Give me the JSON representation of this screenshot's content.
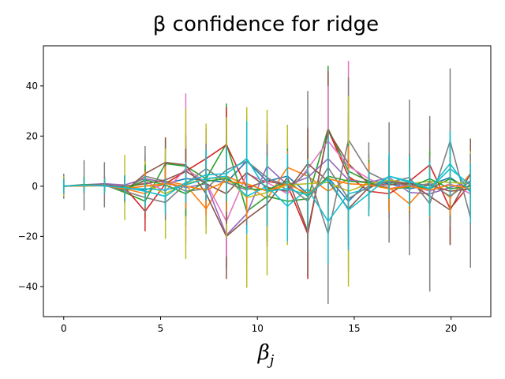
{
  "chart_data": {
    "type": "line",
    "title": "β confidence for ridge",
    "xlabel": "β",
    "xlabel_subscript": "j",
    "ylabel": "",
    "xlim": [
      -1.05,
      22.05
    ],
    "ylim": [
      -52,
      56
    ],
    "xticks": [
      0,
      5,
      10,
      15,
      20
    ],
    "yticks": [
      -40,
      -20,
      0,
      20,
      40
    ],
    "grid": false,
    "legend": "none",
    "x": [
      0,
      1.05,
      2.1,
      3.15,
      4.2,
      5.25,
      6.3,
      7.35,
      8.4,
      9.45,
      10.5,
      11.55,
      12.6,
      13.65,
      14.7,
      15.75,
      16.8,
      17.85,
      18.9,
      19.95,
      21.0
    ],
    "series": [
      {
        "color": "#1f77b4",
        "values": [
          0,
          0.4,
          0.8,
          -0.5,
          -1.5,
          1.0,
          3.0,
          2.5,
          1.5,
          10.0,
          2.0,
          4.0,
          -3.0,
          3.5,
          -6.0,
          2.0,
          1.0,
          -1.0,
          0.5,
          3.5,
          -2.0
        ],
        "error": [
          4,
          3,
          3,
          3,
          4,
          5,
          6,
          6,
          7,
          8,
          9,
          9,
          10,
          11,
          12,
          9,
          9,
          9,
          10,
          11,
          10
        ]
      },
      {
        "color": "#ff7f0e",
        "values": [
          0,
          0.2,
          0.3,
          -1.0,
          -3.0,
          2.0,
          0.5,
          -9.0,
          4.0,
          0.5,
          -5.0,
          7.5,
          4.0,
          -2.0,
          3.0,
          1.0,
          -0.5,
          -7.0,
          2.0,
          -4.5,
          5.0
        ],
        "error": [
          3,
          2,
          2,
          3,
          4,
          4,
          6,
          7,
          7,
          8,
          9,
          9,
          10,
          12,
          11,
          9,
          8,
          8,
          9,
          10,
          10
        ]
      },
      {
        "color": "#2ca02c",
        "values": [
          0,
          0.5,
          0.6,
          -2.5,
          -6.0,
          9.0,
          8.0,
          3.0,
          17.0,
          -10.0,
          -4.0,
          -6.0,
          -5.0,
          23.0,
          6.0,
          2.0,
          1.5,
          0.5,
          -1.0,
          3.0,
          -1.5
        ],
        "error": [
          4,
          3,
          3,
          4,
          7,
          10,
          12,
          11,
          16,
          20,
          18,
          16,
          20,
          25,
          22,
          11,
          10,
          10,
          12,
          13,
          12
        ]
      },
      {
        "color": "#d62728",
        "values": [
          0,
          0.3,
          0.4,
          -0.5,
          -10.0,
          1.0,
          6.0,
          11.0,
          16.5,
          -0.5,
          2.0,
          0.5,
          -19.0,
          22.5,
          4.0,
          -2.0,
          -3.0,
          2.0,
          8.5,
          -9.0,
          1.0
        ],
        "error": [
          4,
          3,
          3,
          4,
          8,
          9,
          11,
          12,
          15,
          17,
          17,
          15,
          18,
          23,
          21,
          10,
          10,
          11,
          14,
          14,
          14
        ]
      },
      {
        "color": "#9467bd",
        "values": [
          0,
          0.6,
          1.0,
          0.5,
          3.0,
          1.5,
          -0.5,
          1.0,
          -19.5,
          -11.0,
          8.0,
          0.5,
          3.5,
          11.0,
          2.5,
          1.5,
          3.5,
          -2.5,
          -3.0,
          -0.5,
          2.0
        ],
        "error": [
          3,
          3,
          3,
          4,
          6,
          7,
          9,
          10,
          13,
          17,
          18,
          16,
          15,
          18,
          18,
          10,
          9,
          11,
          12,
          13,
          12
        ]
      },
      {
        "color": "#8c564b",
        "values": [
          0,
          0.1,
          0.9,
          -2.0,
          5.0,
          9.5,
          8.5,
          -3.0,
          -20.0,
          -13.0,
          -7.0,
          3.5,
          -18.0,
          22.0,
          9.0,
          1.0,
          0.5,
          1.5,
          -4.0,
          -9.5,
          5.0
        ],
        "error": [
          4,
          3,
          3,
          4,
          7,
          10,
          12,
          11,
          17,
          18,
          17,
          15,
          18,
          24,
          21,
          10,
          10,
          11,
          13,
          14,
          14
        ]
      },
      {
        "color": "#e377c2",
        "values": [
          0,
          0.7,
          0.2,
          -1.5,
          2.0,
          -2.0,
          7.0,
          1.5,
          -14.0,
          5.0,
          1.5,
          -3.0,
          7.0,
          18.0,
          8.0,
          3.0,
          -1.0,
          0.5,
          -2.0,
          1.0,
          -3.0
        ],
        "error": [
          4,
          3,
          3,
          4,
          6,
          8,
          30,
          12,
          14,
          17,
          17,
          15,
          17,
          22,
          42,
          10,
          9,
          11,
          12,
          13,
          13
        ]
      },
      {
        "color": "#7f7f7f",
        "values": [
          0,
          0.4,
          0.6,
          -2.0,
          4.0,
          2.0,
          -2.0,
          -1.0,
          6.5,
          10.0,
          3.5,
          -1.5,
          6.0,
          -19.0,
          18.5,
          5.5,
          1.5,
          3.5,
          -7.0,
          18.0,
          -12.5
        ],
        "error": [
          5,
          10,
          9,
          5,
          12,
          10,
          14,
          15,
          18,
          18,
          18,
          17,
          32,
          28,
          25,
          12,
          24,
          31,
          35,
          29,
          20
        ]
      },
      {
        "color": "#bcbd22",
        "values": [
          0,
          0.2,
          0.5,
          -0.5,
          1.0,
          -3.0,
          1.0,
          3.0,
          3.5,
          -4.5,
          -2.5,
          0.5,
          1.0,
          1.5,
          -2.0,
          1.0,
          2.5,
          1.0,
          2.0,
          1.5,
          1.0
        ],
        "error": [
          4,
          3,
          3,
          13,
          9,
          18,
          30,
          22,
          24,
          36,
          33,
          24,
          18,
          21,
          38,
          10,
          9,
          10,
          12,
          13,
          13
        ]
      },
      {
        "color": "#17becf",
        "values": [
          0,
          0.3,
          0.4,
          -1.0,
          -1.0,
          -1.5,
          0.5,
          3.0,
          4.0,
          -4.0,
          0.0,
          -8.0,
          -1.0,
          -14.0,
          -3.0,
          -1.0,
          4.0,
          1.5,
          -1.0,
          7.0,
          0.5
        ],
        "error": [
          3,
          3,
          3,
          5,
          6,
          7,
          8,
          10,
          11,
          15,
          14,
          14,
          14,
          17,
          16,
          9,
          9,
          10,
          11,
          13,
          12
        ]
      },
      {
        "color": "#8c564b",
        "values": [
          0,
          0.5,
          0.3,
          0.0,
          1.0,
          2.5,
          6.0,
          1.0,
          -3.0,
          5.5,
          -0.5,
          -2.0,
          9.0,
          2.0,
          -9.0,
          -0.5,
          2.0,
          1.0,
          0.5,
          -2.0,
          -1.0
        ],
        "error": [
          3,
          3,
          3,
          4,
          6,
          7,
          9,
          10,
          12,
          14,
          14,
          13,
          14,
          15,
          15,
          9,
          9,
          10,
          11,
          12,
          11
        ]
      },
      {
        "color": "#2ca02c",
        "values": [
          0,
          0.6,
          0.4,
          -1.5,
          2.5,
          0.5,
          -3.0,
          2.0,
          3.0,
          -1.0,
          -1.5,
          2.0,
          -4.0,
          4.0,
          2.0,
          1.5,
          -1.0,
          -0.5,
          3.0,
          -1.0,
          0.0
        ],
        "error": [
          3,
          3,
          3,
          4,
          6,
          7,
          9,
          10,
          12,
          14,
          14,
          13,
          14,
          15,
          15,
          9,
          9,
          10,
          11,
          12,
          11
        ]
      },
      {
        "color": "#7f7f7f",
        "values": [
          0,
          0.2,
          0.7,
          -2.0,
          -4.5,
          -6.5,
          1.0,
          7.0,
          1.5,
          -1.5,
          3.0,
          0.5,
          -6.0,
          7.5,
          -5.0,
          0.0,
          2.0,
          0.0,
          1.0,
          -4.0,
          2.0
        ],
        "error": [
          3,
          3,
          3,
          4,
          6,
          7,
          9,
          10,
          12,
          14,
          14,
          13,
          14,
          15,
          15,
          9,
          9,
          10,
          11,
          12,
          11
        ]
      },
      {
        "color": "#ff7f0e",
        "values": [
          0,
          0.1,
          0.2,
          -1.0,
          0.0,
          1.0,
          0.0,
          -1.5,
          2.0,
          1.0,
          -2.0,
          1.0,
          -3.0,
          3.0,
          1.0,
          0.5,
          -1.0,
          0.0,
          -1.5,
          0.5,
          -1.0
        ],
        "error": [
          3,
          3,
          3,
          4,
          6,
          7,
          9,
          10,
          12,
          14,
          14,
          13,
          14,
          15,
          15,
          9,
          9,
          10,
          11,
          12,
          11
        ]
      },
      {
        "color": "#17becf",
        "values": [
          0,
          0.4,
          0.1,
          -0.5,
          -2.0,
          -4.0,
          1.5,
          4.5,
          5.0,
          11.0,
          -2.0,
          -1.0,
          -3.5,
          3.0,
          -9.5,
          -3.0,
          4.0,
          2.0,
          -1.0,
          9.0,
          -2.5
        ],
        "error": [
          3,
          3,
          3,
          5,
          6,
          7,
          8,
          10,
          11,
          15,
          14,
          14,
          14,
          17,
          16,
          9,
          9,
          10,
          11,
          13,
          12
        ]
      }
    ]
  }
}
